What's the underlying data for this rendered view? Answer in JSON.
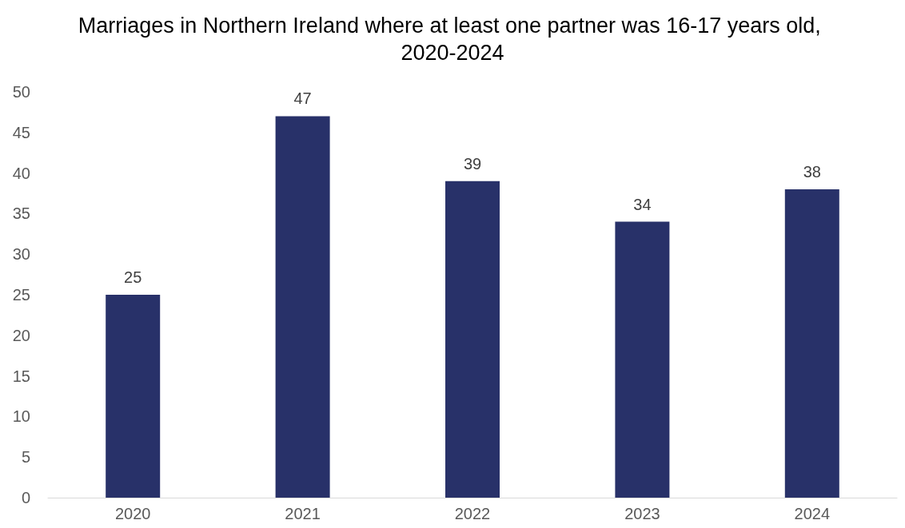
{
  "chart_data": {
    "type": "bar",
    "title": "Marriages in Northern Ireland where at least one partner was 16-17 years old, 2020-2024",
    "categories": [
      "2020",
      "2021",
      "2022",
      "2023",
      "2024"
    ],
    "values": [
      25,
      47,
      39,
      34,
      38
    ],
    "color": "#283169",
    "ylim": [
      0,
      50
    ],
    "yticks": [
      0,
      5,
      10,
      15,
      20,
      25,
      30,
      35,
      40,
      45,
      50
    ],
    "grid": false,
    "data_labels": true
  }
}
